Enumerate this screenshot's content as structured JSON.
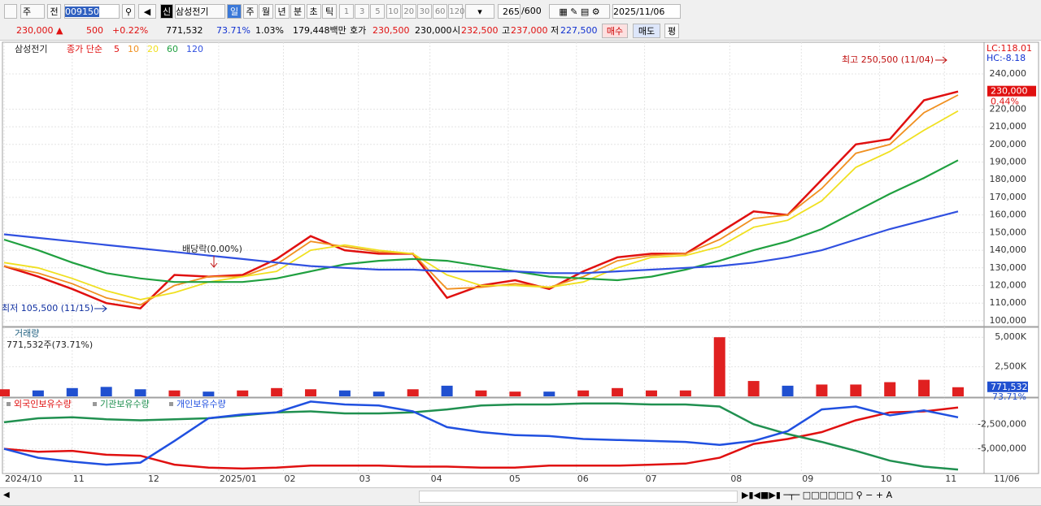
{
  "toolbar": {
    "market": "주",
    "prev": "전",
    "code": "009150",
    "new": "신",
    "name": "삼성전기",
    "periods": [
      "일",
      "주",
      "월",
      "년",
      "분",
      "초",
      "틱"
    ],
    "intervals": [
      "1",
      "3",
      "5",
      "10",
      "20",
      "30",
      "60",
      "120"
    ],
    "count": "265",
    "count_max": "/600",
    "date": "2025/11/06"
  },
  "quote": {
    "price": "230,000 ▲",
    "change": "500",
    "change_rate": "+0.22%",
    "volume": "771,532",
    "volume_rate": "73.71%",
    "turnover": "1.03%",
    "amount": "179,448백만",
    "bid_label": "호가",
    "ask": "230,500",
    "bid": "230,000",
    "open_label": "시",
    "open": "232,500",
    "high_label": "고",
    "high": "237,000",
    "low_label": "저",
    "low": "227,500",
    "buy": "매수",
    "sell": "매도",
    "avg": "평"
  },
  "price_panel": {
    "stock": "삼성전기",
    "legend_title": "종가 단순",
    "series": [
      {
        "name": "5",
        "color": "#e01010",
        "values": [
          131000,
          125000,
          118000,
          110000,
          107000,
          126000,
          125000,
          126000,
          135000,
          148000,
          140000,
          138000,
          138000,
          113000,
          120000,
          123000,
          118000,
          128000,
          136000,
          138000,
          138000,
          150000,
          162000,
          160000,
          180000,
          200000,
          203000,
          225000,
          230000
        ]
      },
      {
        "name": "10",
        "color": "#f09020",
        "values": [
          131000,
          127000,
          121000,
          113000,
          109000,
          120000,
          125000,
          125000,
          132000,
          145000,
          142000,
          139000,
          138000,
          118000,
          119000,
          121000,
          119000,
          125000,
          134000,
          137000,
          138000,
          146000,
          158000,
          160000,
          175000,
          195000,
          200000,
          218000,
          228000
        ]
      },
      {
        "name": "20",
        "color": "#f0e020",
        "values": [
          133000,
          130000,
          124000,
          117000,
          112000,
          116000,
          122000,
          125000,
          128000,
          140000,
          143000,
          140000,
          138000,
          126000,
          120000,
          120000,
          119000,
          122000,
          130000,
          136000,
          137000,
          142000,
          153000,
          157000,
          168000,
          187000,
          196000,
          208000,
          219000
        ]
      },
      {
        "name": "60",
        "color": "#20a040",
        "values": [
          146000,
          140000,
          133000,
          127000,
          124000,
          122000,
          122000,
          122000,
          124000,
          128000,
          132000,
          134000,
          135000,
          134000,
          131000,
          128000,
          125000,
          124000,
          123000,
          125000,
          129000,
          134000,
          140000,
          145000,
          152000,
          162000,
          172000,
          181000,
          191000
        ]
      },
      {
        "name": "120",
        "color": "#3050e0",
        "values": [
          149000,
          147000,
          145000,
          143000,
          141000,
          139000,
          137000,
          135000,
          133000,
          131000,
          130000,
          129000,
          129000,
          128000,
          128000,
          128000,
          127000,
          127000,
          128000,
          129000,
          130000,
          131000,
          133000,
          136000,
          140000,
          146000,
          152000,
          157000,
          162000
        ]
      }
    ],
    "ylim": [
      97200,
      256100
    ],
    "yticks": [
      {
        "value": 100000,
        "label": "100,000"
      },
      {
        "value": 110000,
        "label": "110,000"
      },
      {
        "value": 120000,
        "label": "120,000"
      },
      {
        "value": 130000,
        "label": "130,000"
      },
      {
        "value": 140000,
        "label": "140,000"
      },
      {
        "value": 150000,
        "label": "150,000"
      },
      {
        "value": 160000,
        "label": "160,000"
      },
      {
        "value": 170000,
        "label": "170,000"
      },
      {
        "value": 180000,
        "label": "180,000"
      },
      {
        "value": 190000,
        "label": "190,000"
      },
      {
        "value": 200000,
        "label": "200,000"
      },
      {
        "value": 210000,
        "label": "210,000"
      },
      {
        "value": 220000,
        "label": "220,000"
      },
      {
        "value": 240000,
        "label": "240,000"
      }
    ],
    "lc": "LC:118.01",
    "hc": "HC:-8.18",
    "price_tag": {
      "value": 230000,
      "label": "230,000"
    },
    "price_tag_rate": "0.44%",
    "high_note": "최고 250,500 (11/04)",
    "low_note": "최저 105,500 (11/15)",
    "dividend_note": "배당락(0.00%)"
  },
  "volume_panel": {
    "title": "거래량",
    "summary": "771,532주(73.71%)",
    "values": [
      600000,
      500000,
      700000,
      800000,
      600000,
      500000,
      400000,
      500000,
      700000,
      600000,
      500000,
      400000,
      600000,
      900000,
      500000,
      400000,
      400000,
      500000,
      700000,
      500000,
      500000,
      5000000,
      1300000,
      900000,
      1000000,
      1000000,
      1200000,
      1400000,
      771532
    ],
    "ylim": [
      0,
      5700000
    ],
    "yticks": [
      {
        "value": 2500000,
        "label": "2,500K"
      },
      {
        "value": 5000000,
        "label": "5,000K"
      }
    ],
    "tag": {
      "value": 771532,
      "label": "771,532"
    },
    "tag_rate": "73.71%",
    "up_color": "#e02020",
    "down_color": "#2050d0"
  },
  "holdings_panel": {
    "series": [
      {
        "name": "외국인보유수량",
        "color": "#e01010",
        "values": [
          -5000000,
          -5300000,
          -5200000,
          -5600000,
          -5700000,
          -6600000,
          -6900000,
          -7000000,
          -6900000,
          -6700000,
          -6700000,
          -6700000,
          -6800000,
          -6800000,
          -6900000,
          -6900000,
          -6700000,
          -6700000,
          -6700000,
          -6600000,
          -6500000,
          -5900000,
          -4500000,
          -4000000,
          -3300000,
          -2100000,
          -1300000,
          -1200000,
          -800000
        ]
      },
      {
        "name": "기관보유수량",
        "color": "#209050",
        "values": [
          -2300000,
          -1900000,
          -1800000,
          -2000000,
          -2100000,
          -2000000,
          -1900000,
          -1600000,
          -1300000,
          -1200000,
          -1400000,
          -1400000,
          -1300000,
          -1000000,
          -600000,
          -500000,
          -500000,
          -400000,
          -400000,
          -500000,
          -500000,
          -700000,
          -2500000,
          -3500000,
          -4300000,
          -5200000,
          -6200000,
          -6800000,
          -7100000
        ]
      },
      {
        "name": "개인보유수량",
        "color": "#2050e0",
        "values": [
          -5000000,
          -5900000,
          -6300000,
          -6600000,
          -6400000,
          -4200000,
          -1900000,
          -1500000,
          -1300000,
          -200000,
          -500000,
          -600000,
          -1200000,
          -2800000,
          -3300000,
          -3600000,
          -3700000,
          -4000000,
          -4100000,
          -4200000,
          -4300000,
          -4600000,
          -4200000,
          -3200000,
          -1000000,
          -700000,
          -1600000,
          -1100000,
          -1800000
        ]
      }
    ],
    "ylim": [
      -7420000,
      80000
    ],
    "yticks": [
      {
        "value": -2500000,
        "label": "-2,500,000"
      },
      {
        "value": -5000000,
        "label": "-5,000,000"
      }
    ]
  },
  "x_axis": {
    "xlim": [
      0,
      28
    ],
    "xticks": [
      {
        "value": 0,
        "label": "2024/10"
      },
      {
        "value": 2,
        "label": "11"
      },
      {
        "value": 4.2,
        "label": "12"
      },
      {
        "value": 6.3,
        "label": "2025/01"
      },
      {
        "value": 8.2,
        "label": "02"
      },
      {
        "value": 10.4,
        "label": "03"
      },
      {
        "value": 12.5,
        "label": "04"
      },
      {
        "value": 14.8,
        "label": "05"
      },
      {
        "value": 16.8,
        "label": "06"
      },
      {
        "value": 18.8,
        "label": "07"
      },
      {
        "value": 21.3,
        "label": "08"
      },
      {
        "value": 23.4,
        "label": "09"
      },
      {
        "value": 25.7,
        "label": "10"
      },
      {
        "value": 27.6,
        "label": "11"
      }
    ],
    "end_label": "11/06"
  }
}
